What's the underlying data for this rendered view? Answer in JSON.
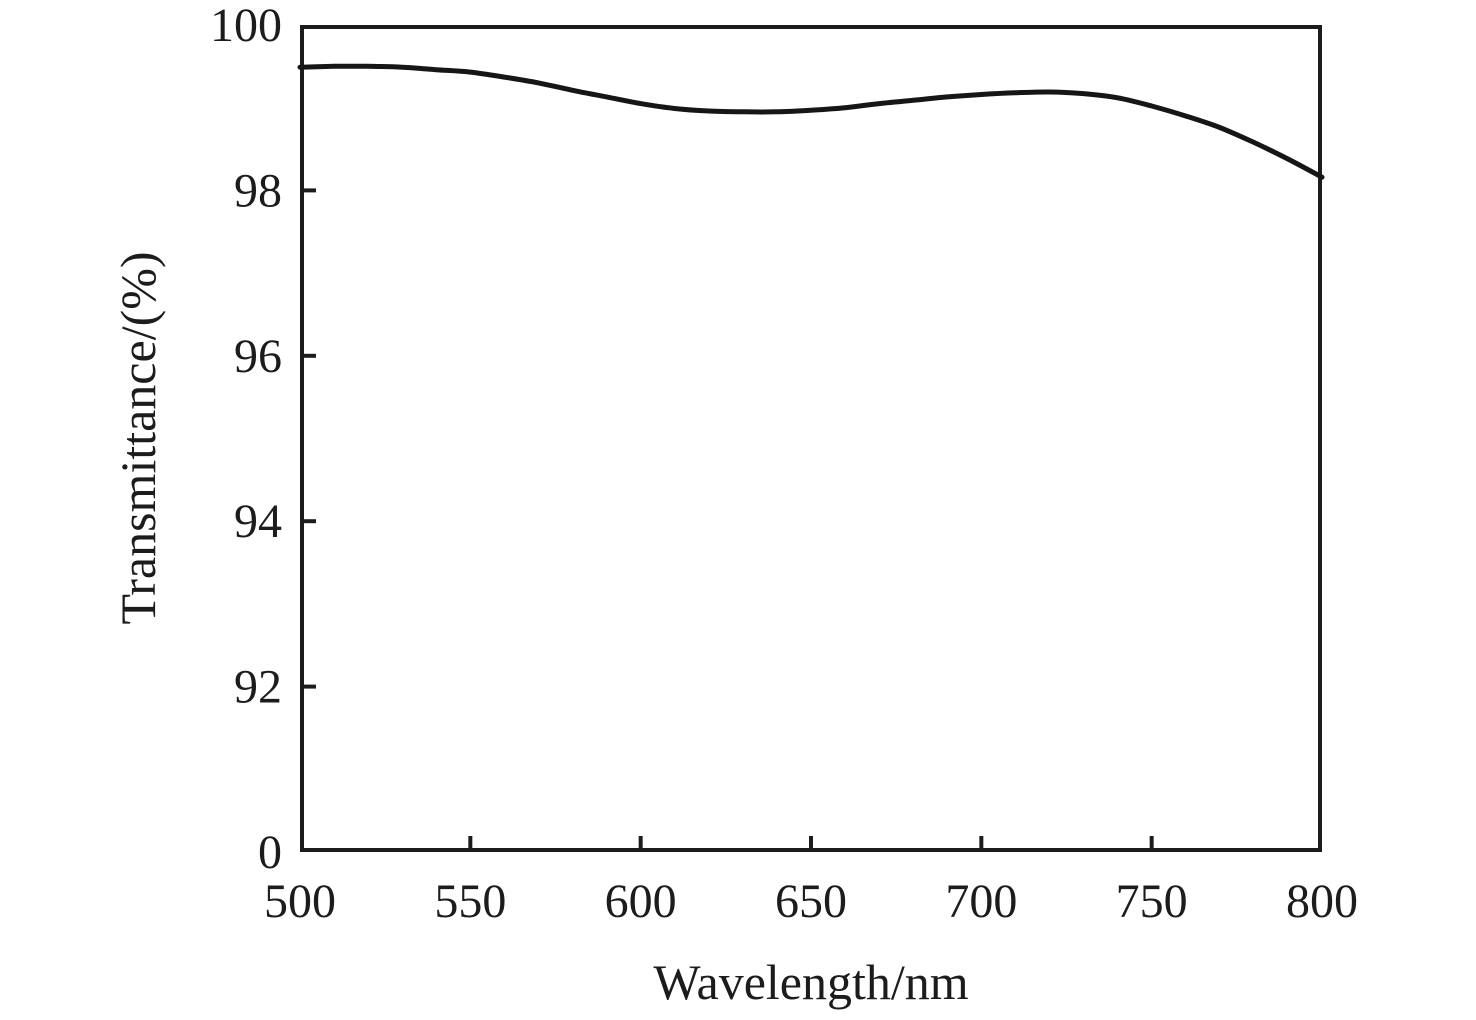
{
  "figure": {
    "background_color": "#ffffff",
    "line_color": "#161616",
    "axis_color": "#1c1c1c"
  },
  "chart_data": {
    "type": "line",
    "title": "",
    "xlabel": "Wavelength/nm",
    "ylabel": "Transmittance/(%)",
    "xlim": [
      500,
      800
    ],
    "ylim_display": [
      90,
      100
    ],
    "grid": false,
    "legend": null,
    "x_ticks": [
      500,
      550,
      600,
      650,
      700,
      750,
      800
    ],
    "y_ticks": [
      {
        "label": "100",
        "pos": 100
      },
      {
        "label": "98",
        "pos": 98
      },
      {
        "label": "96",
        "pos": 96
      },
      {
        "label": "94",
        "pos": 94
      },
      {
        "label": "92",
        "pos": 92
      },
      {
        "label": "0",
        "pos": 90
      }
    ],
    "y_axis_note": "bottom tick labeled 0 on truncated axis (plotted at 90)",
    "x": [
      500,
      510,
      520,
      530,
      540,
      550,
      560,
      570,
      580,
      590,
      600,
      610,
      620,
      630,
      640,
      650,
      660,
      670,
      680,
      690,
      700,
      710,
      720,
      730,
      740,
      750,
      760,
      770,
      780,
      790,
      800
    ],
    "series": [
      {
        "name": "transmittance",
        "values": [
          99.49,
          99.5,
          99.5,
          99.49,
          99.46,
          99.43,
          99.37,
          99.3,
          99.21,
          99.13,
          99.05,
          98.99,
          98.96,
          98.95,
          98.95,
          98.97,
          99.0,
          99.05,
          99.09,
          99.13,
          99.16,
          99.18,
          99.19,
          99.17,
          99.12,
          99.02,
          98.9,
          98.76,
          98.58,
          98.38,
          98.16
        ]
      }
    ]
  }
}
